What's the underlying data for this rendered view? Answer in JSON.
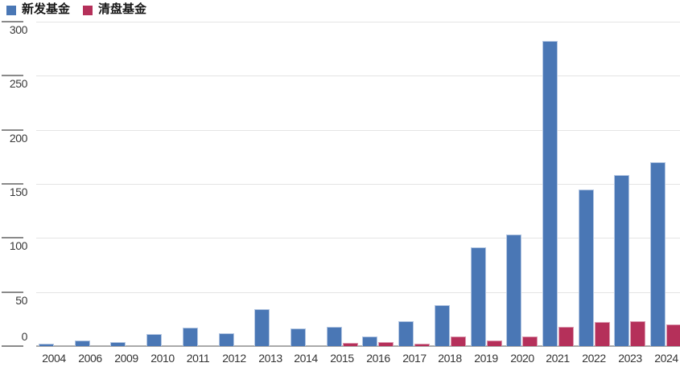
{
  "legend": {
    "items": [
      {
        "key": "new_funds",
        "label": "新发基金",
        "color": "#4a77b5"
      },
      {
        "key": "liquidated_funds",
        "label": "清盘基金",
        "color": "#b5305a"
      }
    ]
  },
  "chart_data": {
    "type": "bar",
    "title": "",
    "xlabel": "",
    "ylabel": "",
    "categories": [
      "2004",
      "2006",
      "2009",
      "2010",
      "2011",
      "2012",
      "2013",
      "2014",
      "2015",
      "2016",
      "2017",
      "2018",
      "2019",
      "2020",
      "2021",
      "2022",
      "2023",
      "2024"
    ],
    "series": [
      {
        "name": "新发基金",
        "key": "new_funds",
        "color": "#4a77b5",
        "border_color": "#b3c6e2",
        "values": [
          2,
          5,
          4,
          11,
          17,
          12,
          34,
          16,
          18,
          9,
          23,
          38,
          91,
          103,
          282,
          145,
          158,
          170
        ]
      },
      {
        "name": "清盘基金",
        "key": "liquidated_funds",
        "color": "#b5305a",
        "border_color": "#dc9ab0",
        "values": [
          0,
          0,
          0,
          0,
          0,
          0,
          0,
          0,
          3,
          4,
          2,
          9,
          5,
          9,
          18,
          22,
          23,
          20
        ]
      }
    ],
    "ylim": [
      0,
      300
    ],
    "yticks": [
      0,
      50,
      100,
      150,
      200,
      250,
      300
    ],
    "grid": true,
    "legend_position": "top-left"
  },
  "colors": {
    "background": "#ffffff",
    "gridline": "#e4e4e4",
    "baseline": "#a9a9a9",
    "tick": "#8a8a8a",
    "axis_text": "#333333",
    "legend_text": "#161616"
  }
}
